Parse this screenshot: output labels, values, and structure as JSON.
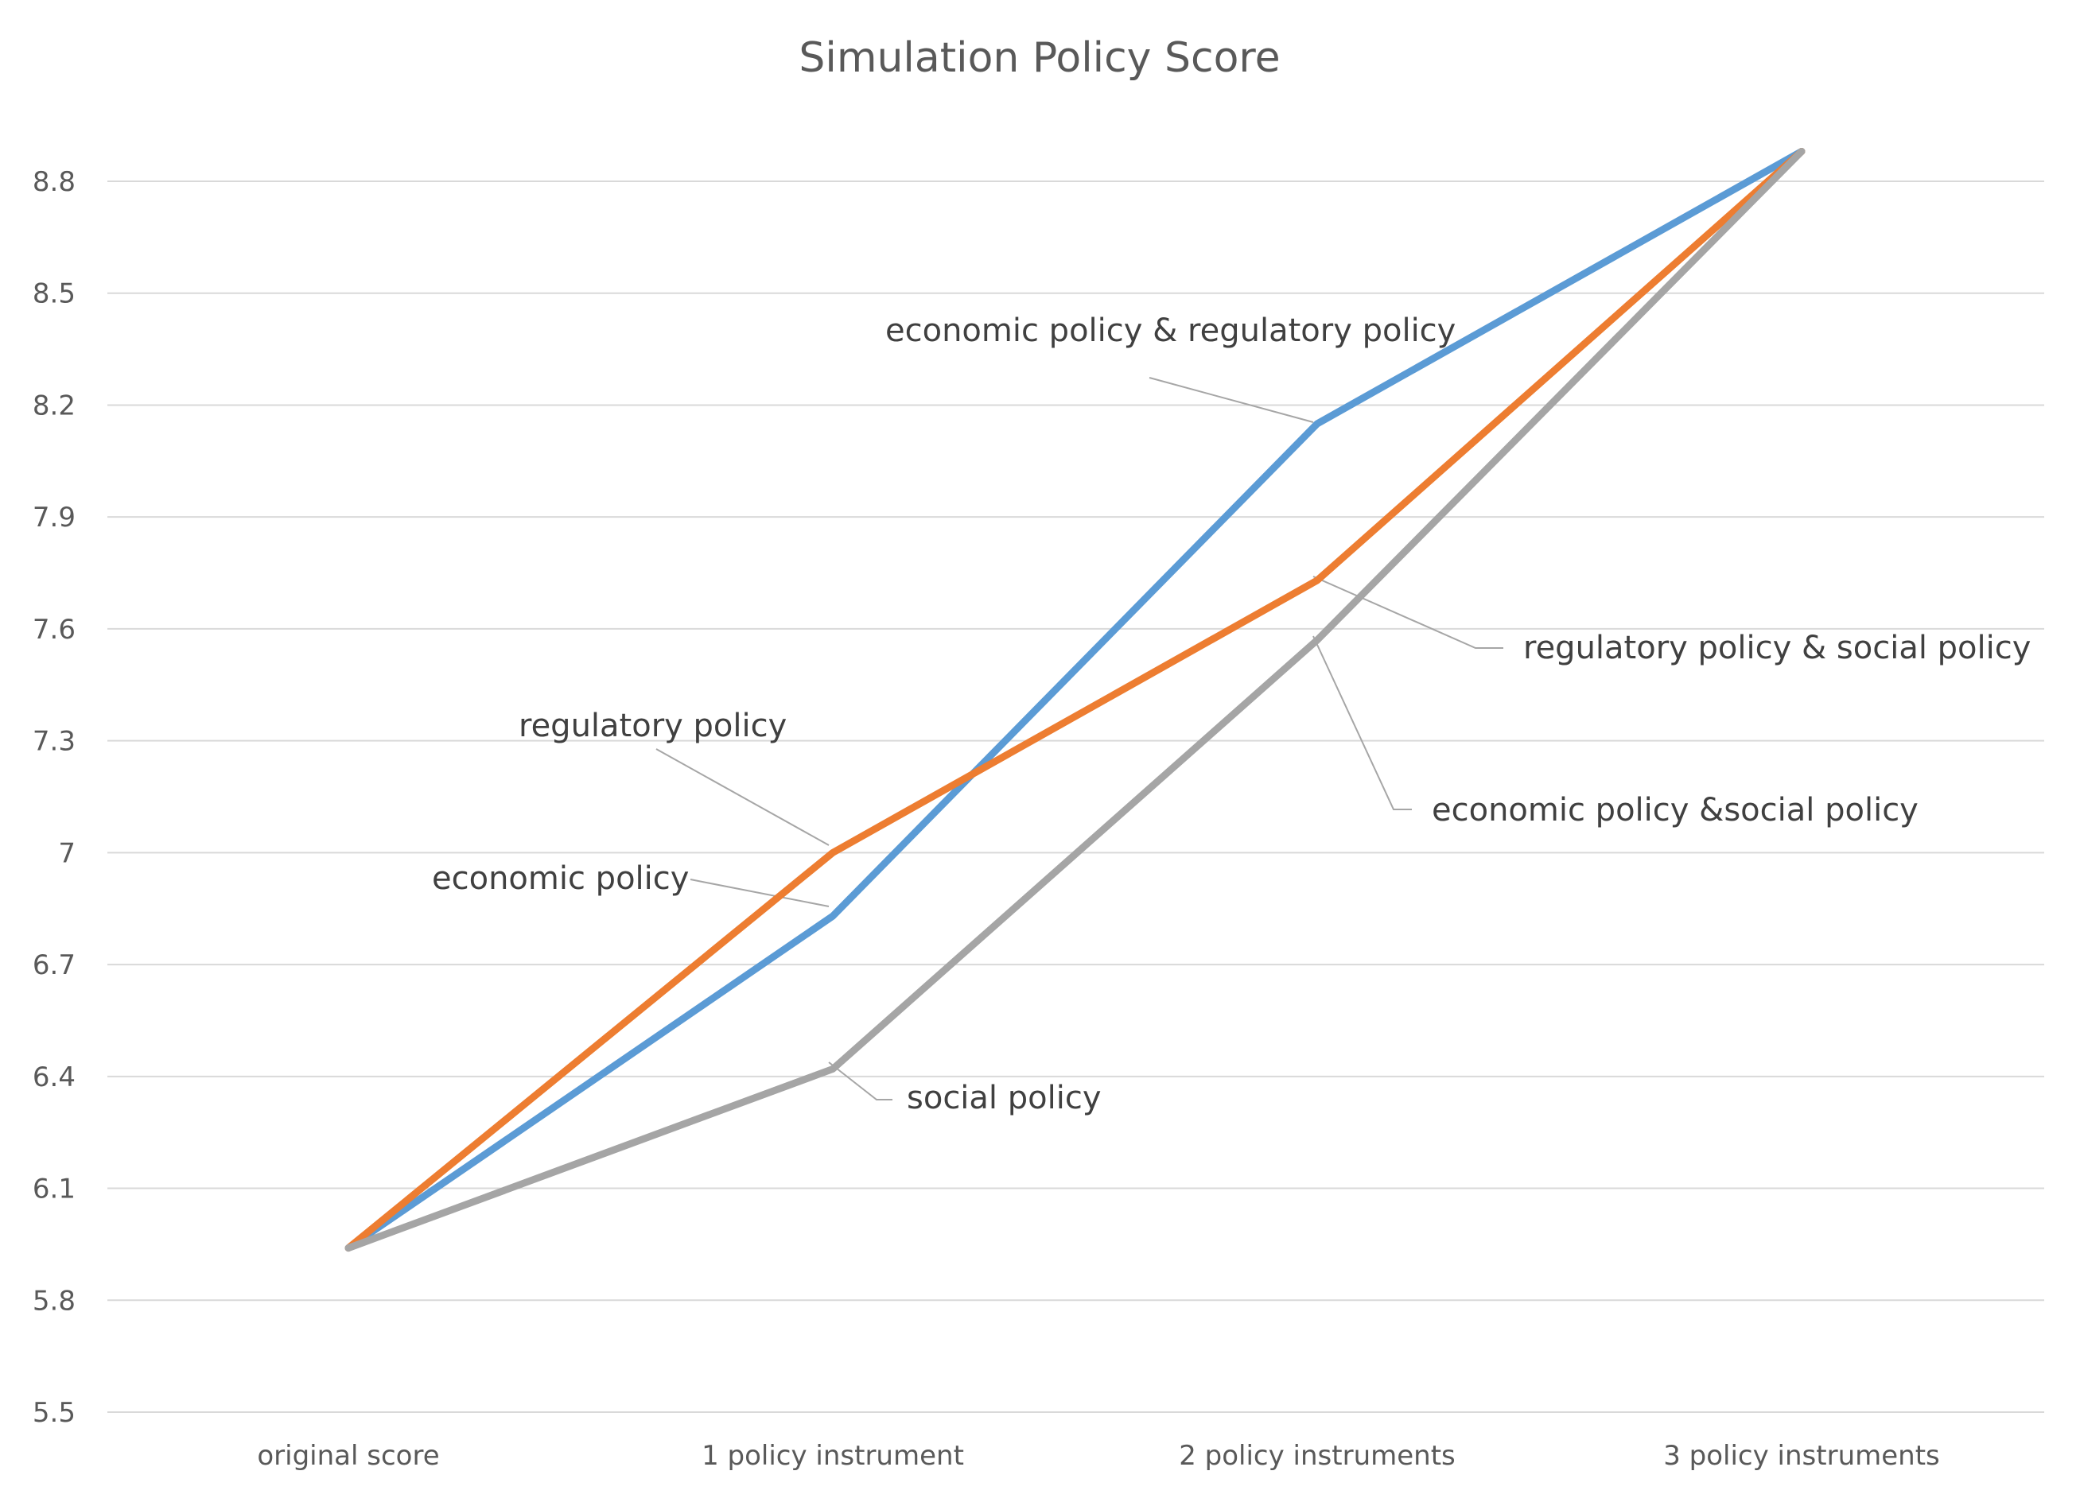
{
  "chart_data": {
    "type": "line",
    "title": "Simulation Policy Score",
    "xlabel": "",
    "ylabel": "",
    "categories": [
      "original score",
      "1 policy instrument",
      "2 policy instruments",
      "3 policy instruments"
    ],
    "ylim": [
      5.5,
      8.8
    ],
    "yticks": [
      "5.5",
      "5.8",
      "6.1",
      "6.4",
      "6.7",
      "7",
      "7.3",
      "7.6",
      "7.9",
      "8.2",
      "8.5",
      "8.8"
    ],
    "grid": true,
    "legend": "none",
    "series": [
      {
        "color": "#5B9BD5",
        "values": [
          5.94,
          6.83,
          8.15,
          8.88
        ]
      },
      {
        "color": "#ED7D31",
        "values": [
          5.94,
          7.0,
          7.73,
          8.88
        ]
      },
      {
        "color": "#A5A5A5",
        "values": [
          5.94,
          6.42,
          7.57,
          8.88
        ]
      }
    ],
    "annotations": [
      {
        "text": "economic policy",
        "series": 0,
        "point": 1
      },
      {
        "text": "regulatory policy",
        "series": 1,
        "point": 1
      },
      {
        "text": "social policy",
        "series": 2,
        "point": 1
      },
      {
        "text": "economic policy & regulatory policy",
        "series": 0,
        "point": 2
      },
      {
        "text": "regulatory policy & social policy",
        "series": 1,
        "point": 2
      },
      {
        "text": "economic policy &social policy",
        "series": 2,
        "point": 2
      }
    ]
  }
}
